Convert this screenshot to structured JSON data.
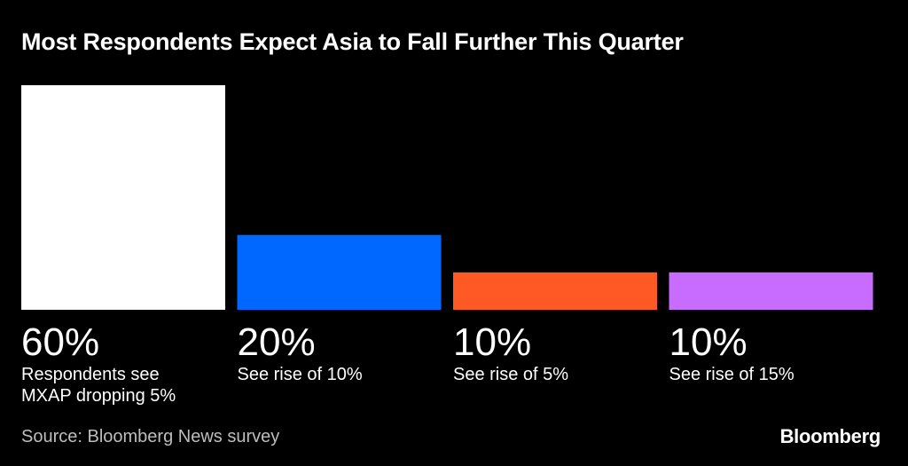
{
  "title": "Most Respondents Expect Asia to Fall Further This Quarter",
  "source": "Source: Bloomberg News survey",
  "logo": "Bloomberg",
  "chart_data": {
    "type": "bar",
    "title": "Most Respondents Expect Asia to Fall Further This Quarter",
    "categories": [
      "Respondents see\nMXAP dropping 5%",
      "See rise of 10%",
      "See rise of 5%",
      "See rise of 15%"
    ],
    "values": [
      60,
      20,
      10,
      10
    ],
    "value_labels": [
      "60%",
      "20%",
      "10%",
      "10%"
    ],
    "colors": [
      "#ffffff",
      "#0068ff",
      "#ff5a26",
      "#c86bff"
    ],
    "unit": "%",
    "ylim": [
      0,
      60
    ],
    "grid": false,
    "legend": "none"
  }
}
